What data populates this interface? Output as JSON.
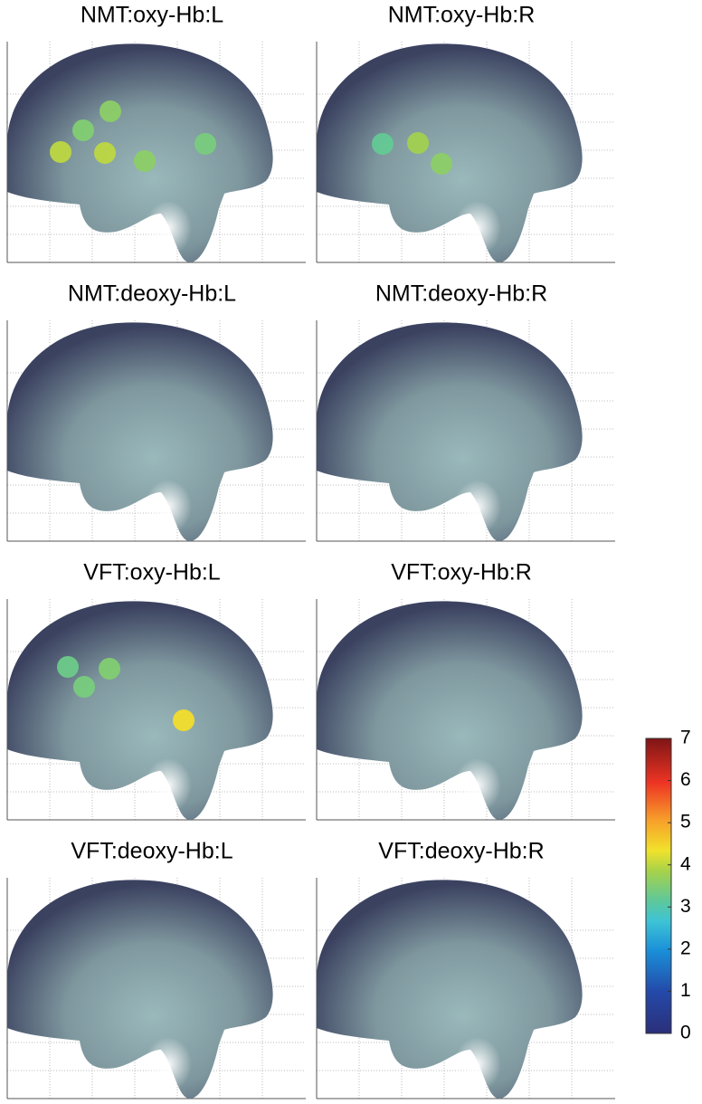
{
  "chart_data": {
    "type": "brain-map",
    "panels": [
      {
        "title": "NMT:oxy-Hb:L",
        "values": [
          4.0,
          3.5,
          3.6,
          4.0,
          3.6,
          3.4
        ]
      },
      {
        "title": "NMT:oxy-Hb:R",
        "values": [
          3.2,
          3.8,
          3.6
        ]
      },
      {
        "title": "NMT:deoxy-Hb:L",
        "values": []
      },
      {
        "title": "NMT:deoxy-Hb:R",
        "values": []
      },
      {
        "title": "VFT:oxy-Hb:L",
        "values": [
          3.3,
          3.5,
          3.4,
          4.4
        ]
      },
      {
        "title": "VFT:oxy-Hb:R",
        "values": []
      },
      {
        "title": "VFT:deoxy-Hb:L",
        "values": []
      },
      {
        "title": "VFT:deoxy-Hb:R",
        "values": []
      }
    ],
    "clim": [
      0,
      7
    ],
    "cticks": [
      0,
      1,
      2,
      3,
      4,
      5,
      6,
      7
    ]
  }
}
